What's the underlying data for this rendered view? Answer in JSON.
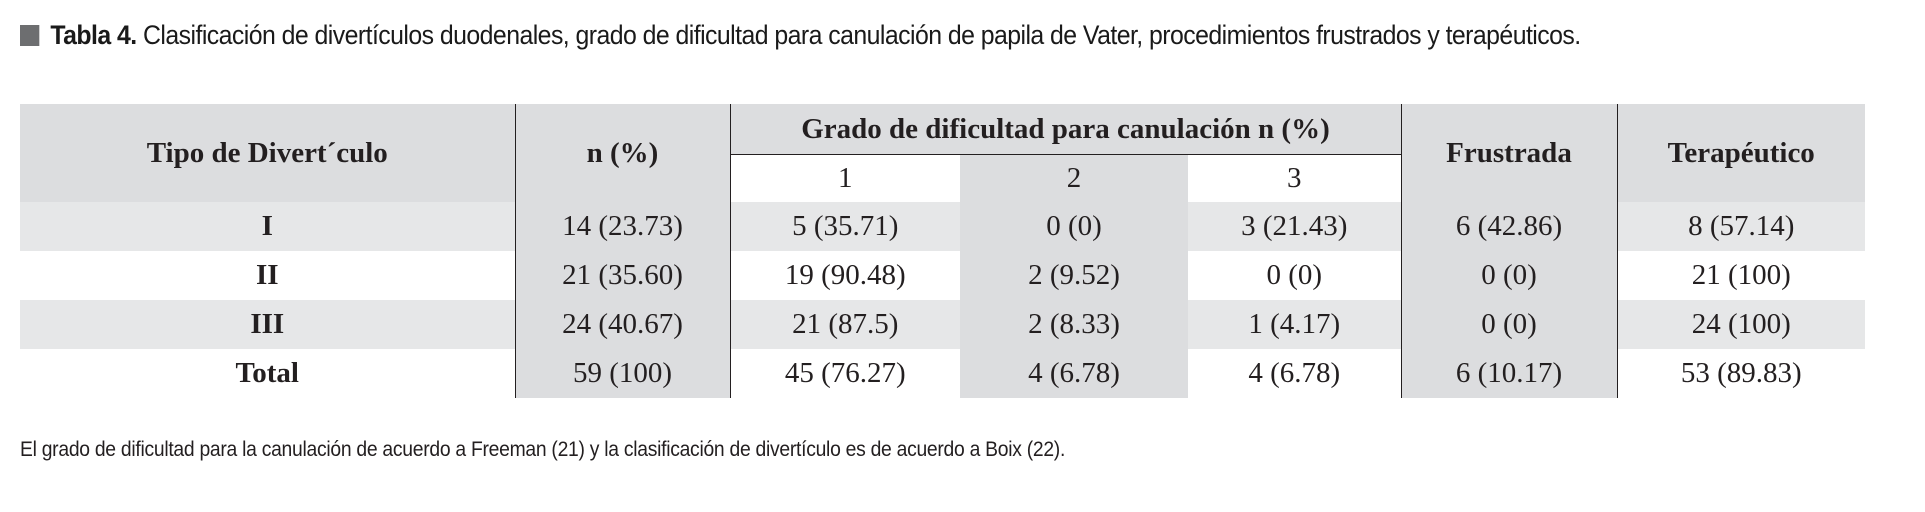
{
  "caption": {
    "icon": "gray-square-icon",
    "icon_color": "#6d6e70",
    "label": "Tabla 4.",
    "text": "Clasificación de divertículos duodenales, grado de dificultad para canulación de papila de Vater, procedimientos frustrados y terapéuticos."
  },
  "table": {
    "headers": {
      "tipo": "Tipo de Divert´culo",
      "n": "n (%)",
      "grado": "Grado de dificultad para canulación n (%)",
      "grado_sub": [
        "1",
        "2",
        "3"
      ],
      "frustrada": "Frustrada",
      "terapeutico": "Terapéutico"
    },
    "rows": [
      {
        "tipo": "I",
        "n": "14 (23.73)",
        "g1": "5 (35.71)",
        "g2": "0 (0)",
        "g3": "3 (21.43)",
        "frustrada": "6  (42.86)",
        "terapeutico": "8 (57.14)"
      },
      {
        "tipo": "II",
        "n": "21 (35.60)",
        "g1": "19 (90.48)",
        "g2": "2 (9.52)",
        "g3": "0 (0)",
        "frustrada": "0 (0)",
        "terapeutico": "21 (100)"
      },
      {
        "tipo": "III",
        "n": "24 (40.67)",
        "g1": "21 (87.5)",
        "g2": "2 (8.33)",
        "g3": "1 (4.17)",
        "frustrada": "0 (0)",
        "terapeutico": "24 (100)"
      },
      {
        "tipo": "Total",
        "n": "59 (100)",
        "g1": "45 (76.27)",
        "g2": "4 (6.78)",
        "g3": "4 (6.78)",
        "frustrada": "6  (10.17)",
        "terapeutico": "53  (89.83)"
      }
    ]
  },
  "footnote": "El grado de dificultad para la canulación de acuerdo a Freeman (21) y la clasificación de divertículo es de acuerdo a Boix (22).",
  "colors": {
    "header_fill": "#dcdddf",
    "row_stripe": "#e6e7e8",
    "text": "#231f20"
  }
}
